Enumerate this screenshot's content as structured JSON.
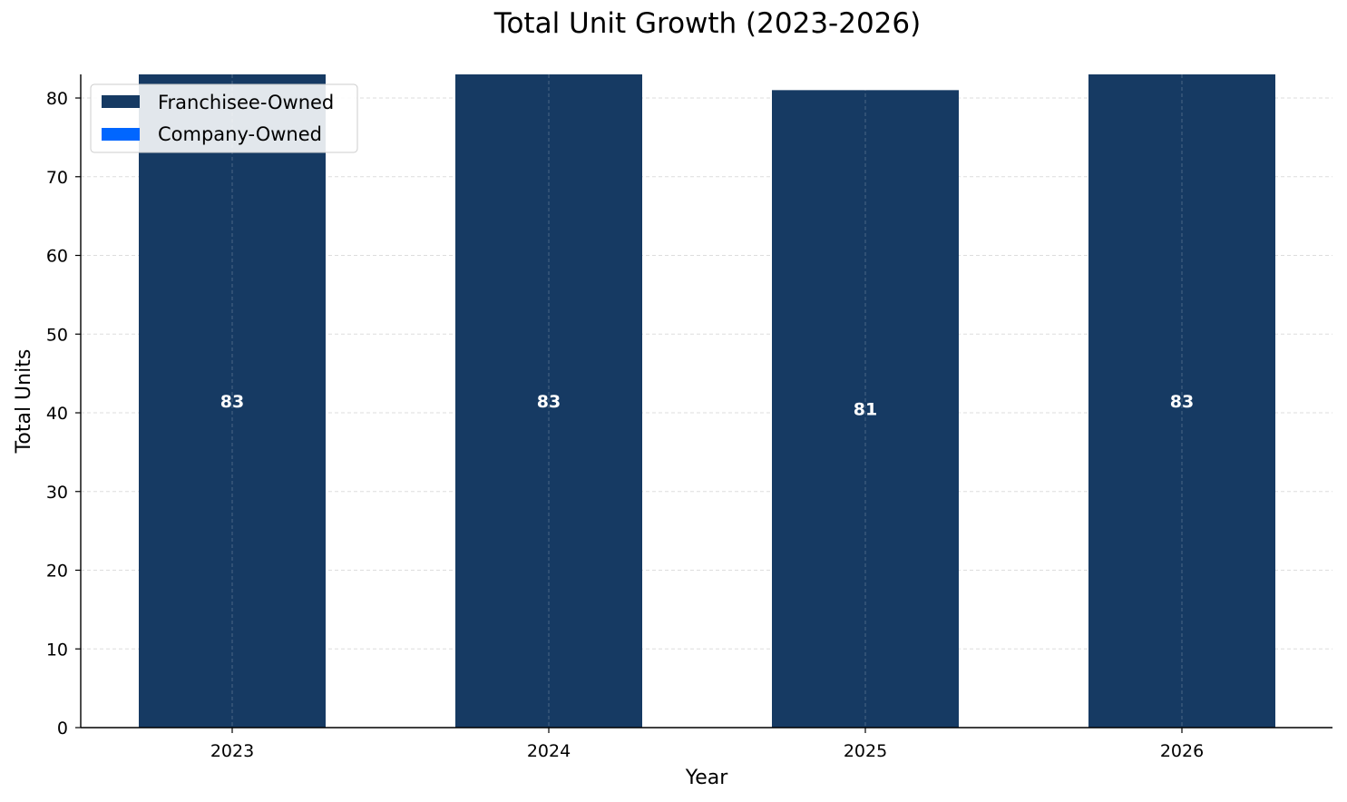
{
  "chart_data": {
    "type": "bar",
    "stacked": true,
    "title": "Total Unit Growth (2023-2026)",
    "xlabel": "Year",
    "ylabel": "Total Units",
    "categories": [
      "2023",
      "2024",
      "2025",
      "2026"
    ],
    "series": [
      {
        "name": "Franchisee-Owned",
        "color": "#163a63",
        "values": [
          83,
          83,
          81,
          83
        ]
      },
      {
        "name": "Company-Owned",
        "color": "#0066ff",
        "values": [
          0,
          0,
          0,
          0
        ]
      }
    ],
    "totals": [
      "83",
      "83",
      "81",
      "83"
    ],
    "ylim": [
      0,
      83
    ],
    "yticks": [
      0,
      10,
      20,
      30,
      40,
      50,
      60,
      70,
      80
    ],
    "grid": true,
    "legend_position": "top-left"
  }
}
